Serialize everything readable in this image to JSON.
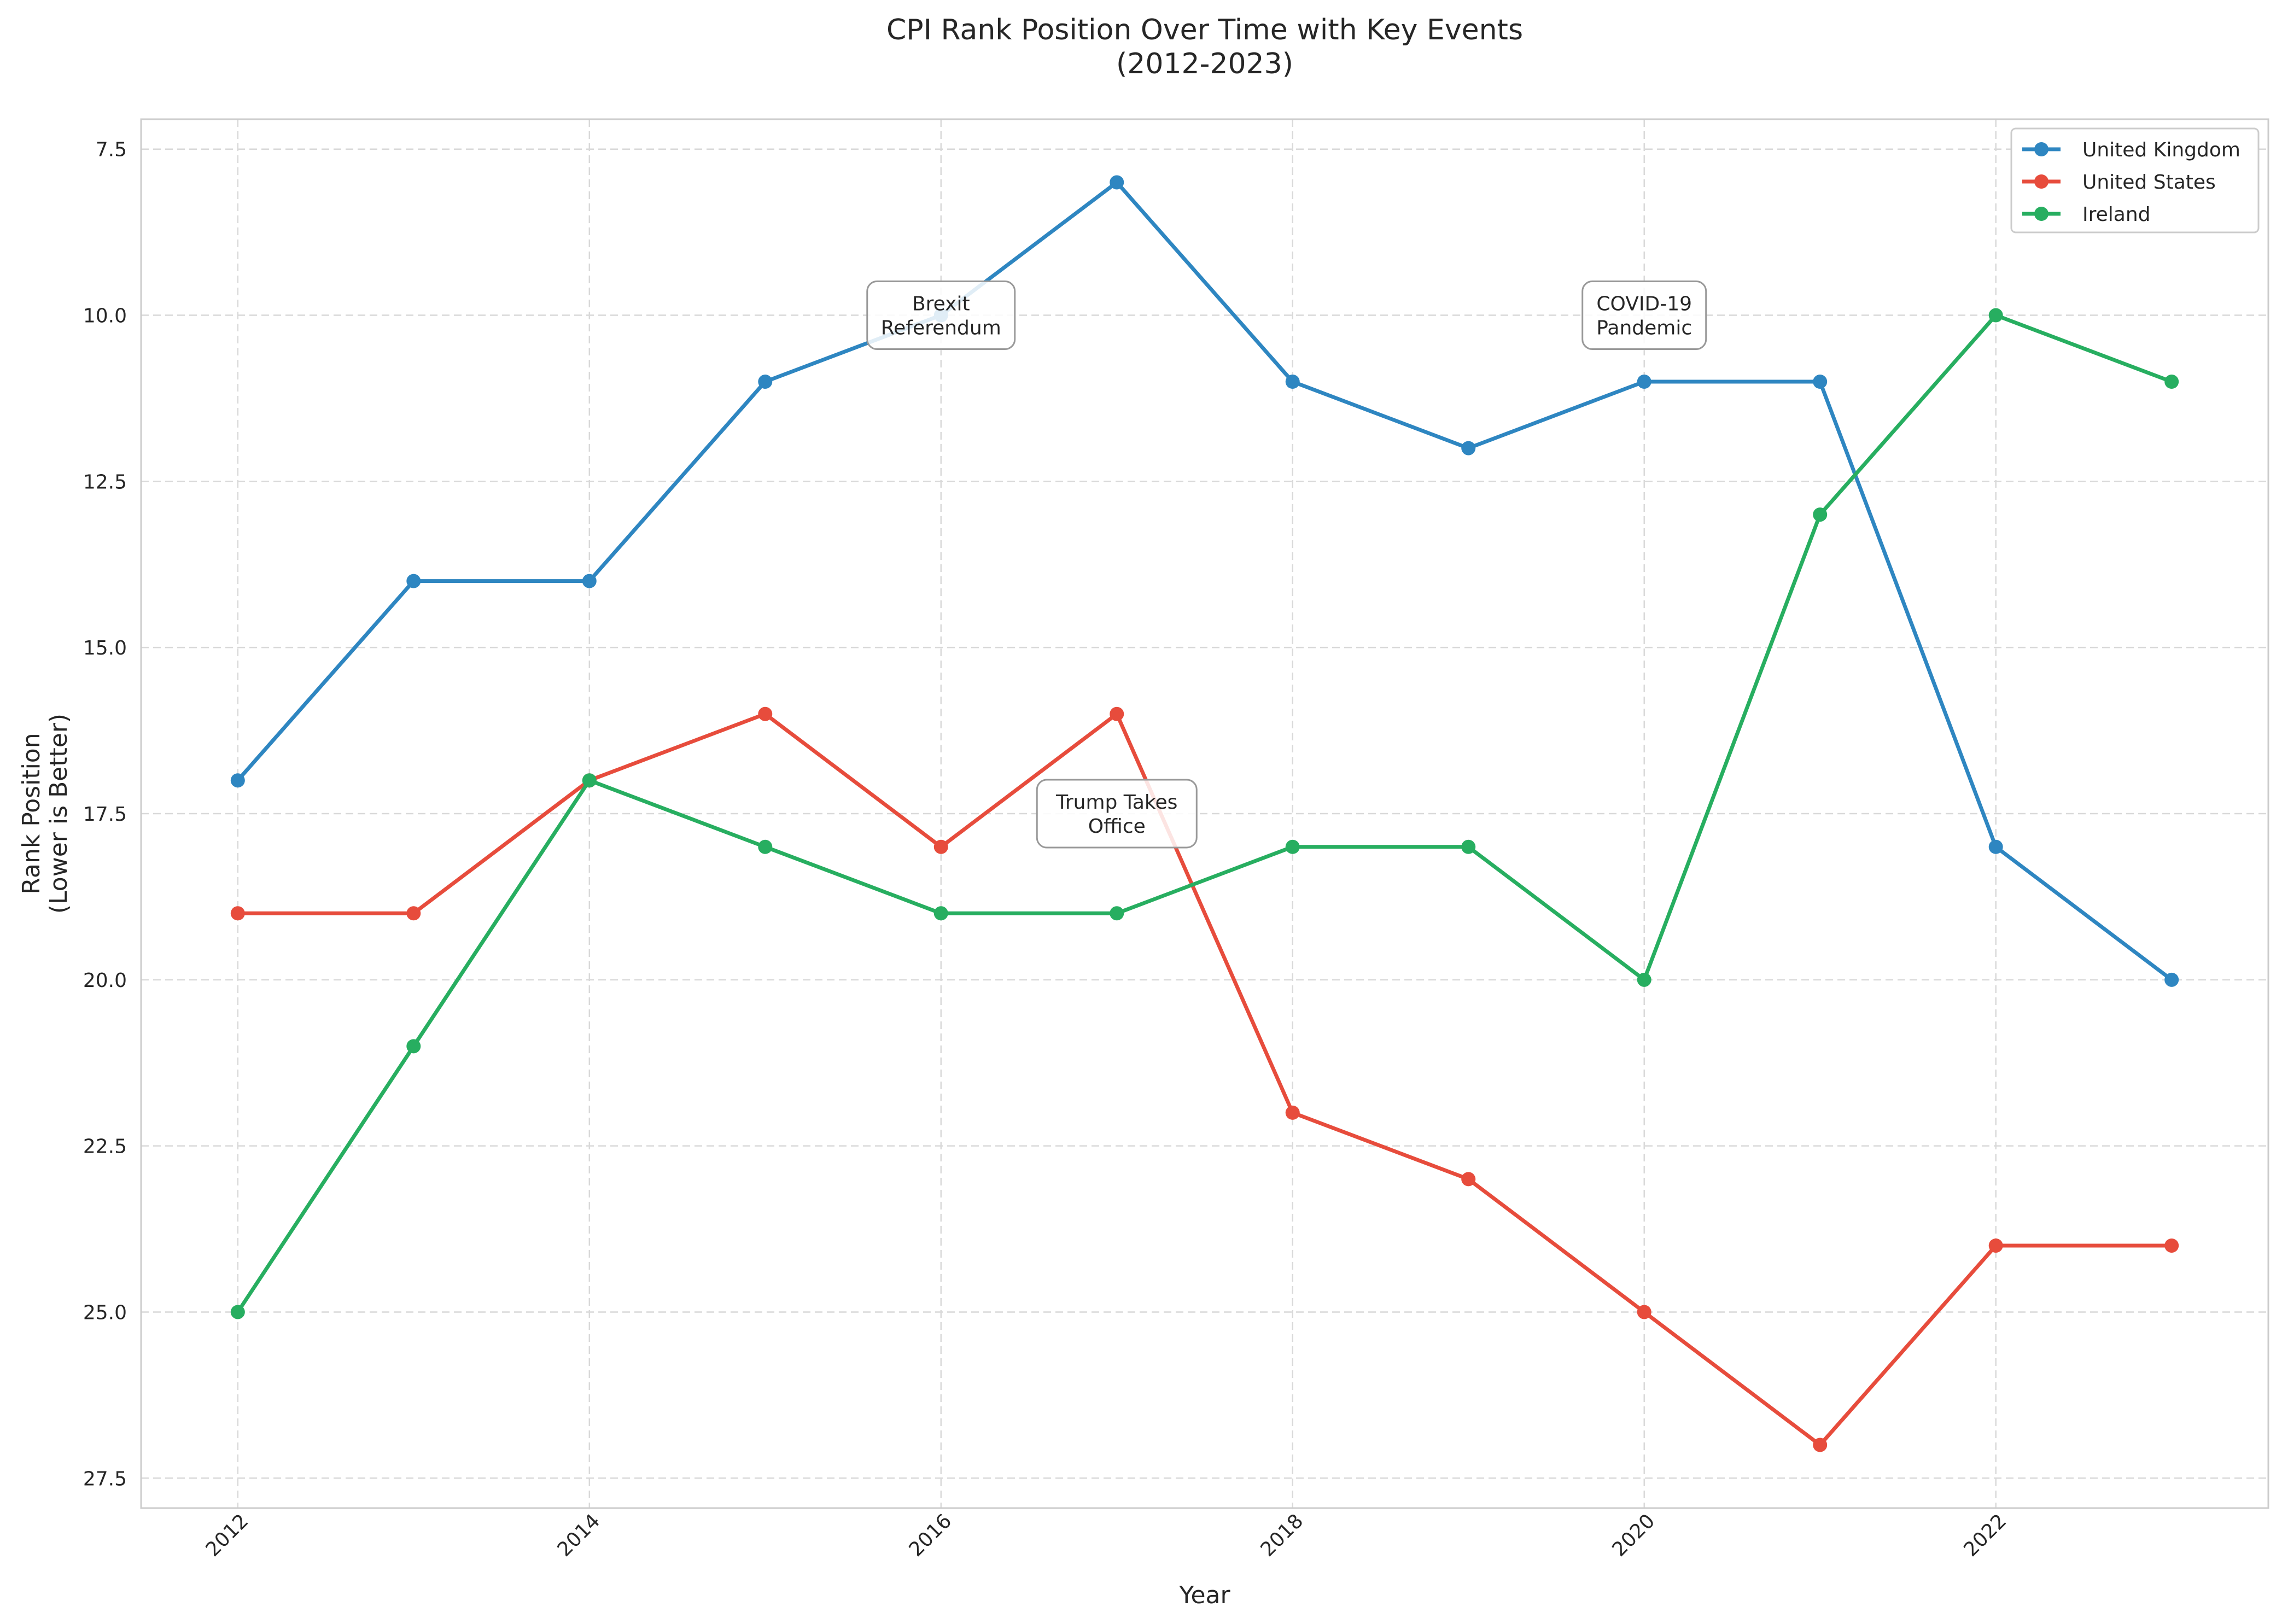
{
  "chart_data": {
    "type": "line",
    "title": [
      "CPI Rank Position Over Time with Key Events",
      "(2012-2023)"
    ],
    "xlabel": "Year",
    "ylabel": [
      "Rank Position",
      "(Lower is Better)"
    ],
    "x": [
      2012,
      2013,
      2014,
      2015,
      2016,
      2017,
      2018,
      2019,
      2020,
      2021,
      2022,
      2023
    ],
    "x_ticks": [
      2012,
      2014,
      2016,
      2018,
      2020,
      2022
    ],
    "x_tick_labels": [
      "2012",
      "2014",
      "2016",
      "2018",
      "2020",
      "2022"
    ],
    "xlim": [
      2011.45,
      2023.55
    ],
    "y_ticks": [
      7.5,
      10.0,
      12.5,
      15.0,
      17.5,
      20.0,
      22.5,
      25.0,
      27.5
    ],
    "y_tick_labels": [
      "7.5",
      "10.0",
      "12.5",
      "15.0",
      "17.5",
      "20.0",
      "22.5",
      "25.0",
      "27.5"
    ],
    "ylim": [
      7.05,
      27.95
    ],
    "y_inverted": true,
    "grid": true,
    "legend_position": "top-right",
    "series": [
      {
        "name": "United Kingdom",
        "color": "#2e86c1",
        "values": [
          17,
          14,
          14,
          11,
          10,
          8,
          11,
          12,
          11,
          11,
          18,
          20
        ]
      },
      {
        "name": "United States",
        "color": "#e74c3c",
        "values": [
          19,
          19,
          17,
          16,
          18,
          16,
          22,
          23,
          25,
          27,
          24,
          24
        ]
      },
      {
        "name": "Ireland",
        "color": "#27ae60",
        "values": [
          25,
          21,
          17,
          18,
          19,
          19,
          18,
          18,
          20,
          13,
          10,
          11
        ]
      }
    ],
    "annotations": [
      {
        "lines": [
          "Brexit",
          "Referendum"
        ],
        "x": 2016,
        "y": 10
      },
      {
        "lines": [
          "Trump Takes",
          "Office"
        ],
        "x": 2017,
        "y": 17.5
      },
      {
        "lines": [
          "COVID-19",
          "Pandemic"
        ],
        "x": 2020,
        "y": 10
      }
    ]
  }
}
